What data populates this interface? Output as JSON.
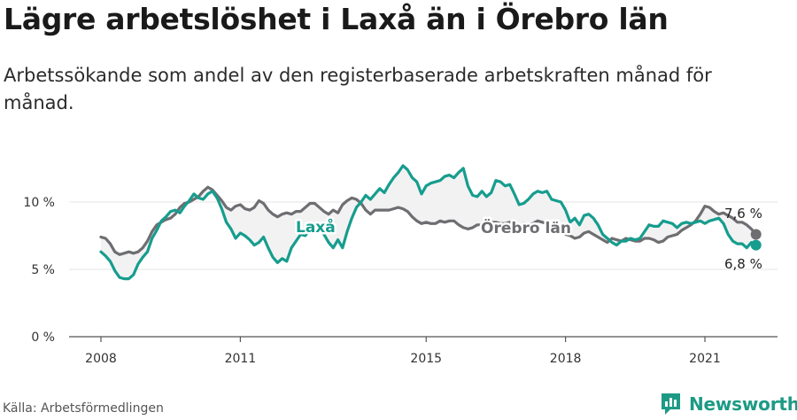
{
  "header": {
    "title": "Lägre arbetslöshet i Laxå än i Örebro län",
    "subtitle": "Arbetssökande som andel av den registerbaserade arbetskraften månad för månad."
  },
  "footer": {
    "source": "Källa: Arbetsförmedlingen",
    "brand": "Newsworthy"
  },
  "colors": {
    "laxa": "#169d8e",
    "orebro": "#6e6e72",
    "fill": "#f2f2f3",
    "axis": "#555555",
    "grid": "#e5e5e5"
  },
  "chart_data": {
    "type": "line",
    "title": "Lägre arbetslöshet i Laxå än i Örebro län",
    "ylim": [
      0,
      13
    ],
    "yticks": [
      0,
      5,
      10
    ],
    "ytick_labels": [
      "0 %",
      "5 %",
      "10 %"
    ],
    "xlim": [
      2007.5,
      2022.5
    ],
    "xticks": [
      2008,
      2011,
      2015,
      2018,
      2021
    ],
    "xtick_labels": [
      "2008",
      "2011",
      "2015",
      "2018",
      "2021"
    ],
    "grid": true,
    "annotations": {
      "orebro_end": "7,6 %",
      "laxa_end": "6,8 %"
    },
    "series": [
      {
        "name": "Laxå",
        "color": "#169d8e",
        "points": [
          [
            2008.0,
            6.3
          ],
          [
            2008.1,
            6.0
          ],
          [
            2008.2,
            5.6
          ],
          [
            2008.3,
            4.9
          ],
          [
            2008.4,
            4.4
          ],
          [
            2008.5,
            4.3
          ],
          [
            2008.6,
            4.3
          ],
          [
            2008.7,
            4.6
          ],
          [
            2008.8,
            5.4
          ],
          [
            2008.9,
            5.9
          ],
          [
            2009.0,
            6.3
          ],
          [
            2009.1,
            7.3
          ],
          [
            2009.2,
            7.9
          ],
          [
            2009.3,
            8.6
          ],
          [
            2009.4,
            8.9
          ],
          [
            2009.5,
            9.3
          ],
          [
            2009.6,
            9.4
          ],
          [
            2009.7,
            9.2
          ],
          [
            2009.8,
            9.7
          ],
          [
            2009.9,
            10.1
          ],
          [
            2010.0,
            10.6
          ],
          [
            2010.1,
            10.3
          ],
          [
            2010.2,
            10.2
          ],
          [
            2010.3,
            10.6
          ],
          [
            2010.4,
            10.8
          ],
          [
            2010.5,
            10.3
          ],
          [
            2010.6,
            9.5
          ],
          [
            2010.7,
            8.5
          ],
          [
            2010.8,
            8.0
          ],
          [
            2010.9,
            7.3
          ],
          [
            2011.0,
            7.7
          ],
          [
            2011.1,
            7.5
          ],
          [
            2011.2,
            7.2
          ],
          [
            2011.3,
            6.8
          ],
          [
            2011.4,
            7.0
          ],
          [
            2011.5,
            7.4
          ],
          [
            2011.6,
            6.6
          ],
          [
            2011.7,
            5.9
          ],
          [
            2011.8,
            5.5
          ],
          [
            2011.9,
            5.8
          ],
          [
            2012.0,
            5.6
          ],
          [
            2012.1,
            6.6
          ],
          [
            2012.2,
            7.1
          ],
          [
            2012.3,
            7.6
          ],
          [
            2012.4,
            7.5
          ],
          [
            2012.5,
            8.0
          ],
          [
            2012.6,
            8.4
          ],
          [
            2012.7,
            8.3
          ],
          [
            2012.8,
            7.6
          ],
          [
            2012.9,
            7.0
          ],
          [
            2013.0,
            6.6
          ],
          [
            2013.1,
            7.2
          ],
          [
            2013.2,
            6.6
          ],
          [
            2013.3,
            7.8
          ],
          [
            2013.4,
            8.8
          ],
          [
            2013.5,
            9.6
          ],
          [
            2013.6,
            10.0
          ],
          [
            2013.7,
            10.5
          ],
          [
            2013.8,
            10.2
          ],
          [
            2013.9,
            10.6
          ],
          [
            2014.0,
            11.0
          ],
          [
            2014.1,
            10.7
          ],
          [
            2014.2,
            11.3
          ],
          [
            2014.3,
            11.8
          ],
          [
            2014.4,
            12.2
          ],
          [
            2014.5,
            12.7
          ],
          [
            2014.6,
            12.4
          ],
          [
            2014.7,
            11.8
          ],
          [
            2014.8,
            11.5
          ],
          [
            2014.9,
            10.6
          ],
          [
            2015.0,
            11.2
          ],
          [
            2015.1,
            11.4
          ],
          [
            2015.2,
            11.5
          ],
          [
            2015.3,
            11.6
          ],
          [
            2015.4,
            11.9
          ],
          [
            2015.5,
            12.0
          ],
          [
            2015.6,
            11.8
          ],
          [
            2015.7,
            12.2
          ],
          [
            2015.8,
            12.5
          ],
          [
            2015.9,
            11.2
          ],
          [
            2016.0,
            10.5
          ],
          [
            2016.1,
            10.4
          ],
          [
            2016.2,
            10.8
          ],
          [
            2016.3,
            10.4
          ],
          [
            2016.4,
            10.7
          ],
          [
            2016.5,
            11.6
          ],
          [
            2016.6,
            11.5
          ],
          [
            2016.7,
            11.2
          ],
          [
            2016.8,
            11.3
          ],
          [
            2016.9,
            10.6
          ],
          [
            2017.0,
            9.8
          ],
          [
            2017.1,
            9.9
          ],
          [
            2017.2,
            10.2
          ],
          [
            2017.3,
            10.6
          ],
          [
            2017.4,
            10.8
          ],
          [
            2017.5,
            10.7
          ],
          [
            2017.6,
            10.8
          ],
          [
            2017.7,
            10.2
          ],
          [
            2017.8,
            10.1
          ],
          [
            2017.9,
            10.0
          ],
          [
            2018.0,
            9.4
          ],
          [
            2018.1,
            8.5
          ],
          [
            2018.2,
            8.8
          ],
          [
            2018.3,
            8.3
          ],
          [
            2018.4,
            9.0
          ],
          [
            2018.5,
            9.1
          ],
          [
            2018.6,
            8.8
          ],
          [
            2018.7,
            8.3
          ],
          [
            2018.8,
            7.6
          ],
          [
            2018.9,
            7.3
          ],
          [
            2019.0,
            7.0
          ],
          [
            2019.1,
            6.8
          ],
          [
            2019.2,
            7.1
          ],
          [
            2019.3,
            7.1
          ],
          [
            2019.4,
            7.3
          ],
          [
            2019.5,
            7.2
          ],
          [
            2019.6,
            7.3
          ],
          [
            2019.7,
            7.8
          ],
          [
            2019.8,
            8.3
          ],
          [
            2019.9,
            8.2
          ],
          [
            2020.0,
            8.2
          ],
          [
            2020.1,
            8.6
          ],
          [
            2020.2,
            8.5
          ],
          [
            2020.3,
            8.4
          ],
          [
            2020.4,
            8.1
          ],
          [
            2020.5,
            8.4
          ],
          [
            2020.6,
            8.5
          ],
          [
            2020.7,
            8.4
          ],
          [
            2020.8,
            8.5
          ],
          [
            2020.9,
            8.6
          ],
          [
            2021.0,
            8.4
          ],
          [
            2021.1,
            8.6
          ],
          [
            2021.2,
            8.7
          ],
          [
            2021.3,
            8.8
          ],
          [
            2021.4,
            8.4
          ],
          [
            2021.5,
            7.6
          ],
          [
            2021.6,
            7.1
          ],
          [
            2021.7,
            6.9
          ],
          [
            2021.8,
            6.9
          ],
          [
            2021.9,
            6.6
          ],
          [
            2022.0,
            7.0
          ],
          [
            2022.1,
            6.8
          ]
        ]
      },
      {
        "name": "Örebro län",
        "color": "#6e6e72",
        "points": [
          [
            2008.0,
            7.4
          ],
          [
            2008.1,
            7.3
          ],
          [
            2008.2,
            6.9
          ],
          [
            2008.3,
            6.3
          ],
          [
            2008.4,
            6.1
          ],
          [
            2008.5,
            6.2
          ],
          [
            2008.6,
            6.3
          ],
          [
            2008.7,
            6.2
          ],
          [
            2008.8,
            6.3
          ],
          [
            2008.9,
            6.6
          ],
          [
            2009.0,
            7.1
          ],
          [
            2009.1,
            7.8
          ],
          [
            2009.2,
            8.3
          ],
          [
            2009.3,
            8.5
          ],
          [
            2009.4,
            8.7
          ],
          [
            2009.5,
            8.8
          ],
          [
            2009.6,
            9.1
          ],
          [
            2009.7,
            9.6
          ],
          [
            2009.8,
            9.9
          ],
          [
            2009.9,
            10.0
          ],
          [
            2010.0,
            10.2
          ],
          [
            2010.1,
            10.4
          ],
          [
            2010.2,
            10.8
          ],
          [
            2010.3,
            11.1
          ],
          [
            2010.4,
            10.9
          ],
          [
            2010.5,
            10.5
          ],
          [
            2010.6,
            10.1
          ],
          [
            2010.7,
            9.6
          ],
          [
            2010.8,
            9.4
          ],
          [
            2010.9,
            9.7
          ],
          [
            2011.0,
            9.8
          ],
          [
            2011.1,
            9.5
          ],
          [
            2011.2,
            9.4
          ],
          [
            2011.3,
            9.6
          ],
          [
            2011.4,
            10.1
          ],
          [
            2011.5,
            9.9
          ],
          [
            2011.6,
            9.4
          ],
          [
            2011.7,
            9.1
          ],
          [
            2011.8,
            8.9
          ],
          [
            2011.9,
            9.1
          ],
          [
            2012.0,
            9.2
          ],
          [
            2012.1,
            9.1
          ],
          [
            2012.2,
            9.3
          ],
          [
            2012.3,
            9.3
          ],
          [
            2012.4,
            9.6
          ],
          [
            2012.5,
            9.9
          ],
          [
            2012.6,
            9.9
          ],
          [
            2012.7,
            9.6
          ],
          [
            2012.8,
            9.3
          ],
          [
            2012.9,
            9.1
          ],
          [
            2013.0,
            9.4
          ],
          [
            2013.1,
            9.2
          ],
          [
            2013.2,
            9.8
          ],
          [
            2013.3,
            10.1
          ],
          [
            2013.4,
            10.3
          ],
          [
            2013.5,
            10.2
          ],
          [
            2013.6,
            9.9
          ],
          [
            2013.7,
            9.4
          ],
          [
            2013.8,
            9.1
          ],
          [
            2013.9,
            9.4
          ],
          [
            2014.0,
            9.4
          ],
          [
            2014.1,
            9.4
          ],
          [
            2014.2,
            9.4
          ],
          [
            2014.3,
            9.5
          ],
          [
            2014.4,
            9.6
          ],
          [
            2014.5,
            9.5
          ],
          [
            2014.6,
            9.3
          ],
          [
            2014.7,
            8.9
          ],
          [
            2014.8,
            8.6
          ],
          [
            2014.9,
            8.4
          ],
          [
            2015.0,
            8.5
          ],
          [
            2015.1,
            8.4
          ],
          [
            2015.2,
            8.4
          ],
          [
            2015.3,
            8.6
          ],
          [
            2015.4,
            8.5
          ],
          [
            2015.5,
            8.6
          ],
          [
            2015.6,
            8.6
          ],
          [
            2015.7,
            8.3
          ],
          [
            2015.8,
            8.1
          ],
          [
            2015.9,
            8.0
          ],
          [
            2016.0,
            8.1
          ],
          [
            2016.1,
            8.3
          ],
          [
            2016.2,
            8.3
          ],
          [
            2016.3,
            8.3
          ],
          [
            2016.4,
            8.5
          ],
          [
            2016.5,
            8.5
          ],
          [
            2016.6,
            8.4
          ],
          [
            2016.7,
            8.4
          ],
          [
            2016.8,
            8.5
          ],
          [
            2016.9,
            8.3
          ],
          [
            2017.0,
            8.2
          ],
          [
            2017.1,
            8.4
          ],
          [
            2017.2,
            8.3
          ],
          [
            2017.3,
            8.4
          ],
          [
            2017.4,
            8.6
          ],
          [
            2017.5,
            8.5
          ],
          [
            2017.6,
            8.4
          ],
          [
            2017.7,
            8.1
          ],
          [
            2017.8,
            8.2
          ],
          [
            2017.9,
            7.9
          ],
          [
            2018.0,
            7.6
          ],
          [
            2018.1,
            7.5
          ],
          [
            2018.2,
            7.3
          ],
          [
            2018.3,
            7.4
          ],
          [
            2018.4,
            7.7
          ],
          [
            2018.5,
            7.8
          ],
          [
            2018.6,
            7.6
          ],
          [
            2018.7,
            7.4
          ],
          [
            2018.8,
            7.2
          ],
          [
            2018.9,
            7.0
          ],
          [
            2019.0,
            7.3
          ],
          [
            2019.1,
            7.2
          ],
          [
            2019.2,
            7.1
          ],
          [
            2019.3,
            7.3
          ],
          [
            2019.4,
            7.2
          ],
          [
            2019.5,
            7.1
          ],
          [
            2019.6,
            7.1
          ],
          [
            2019.7,
            7.3
          ],
          [
            2019.8,
            7.3
          ],
          [
            2019.9,
            7.2
          ],
          [
            2020.0,
            7.0
          ],
          [
            2020.1,
            7.1
          ],
          [
            2020.2,
            7.4
          ],
          [
            2020.3,
            7.5
          ],
          [
            2020.4,
            7.6
          ],
          [
            2020.5,
            7.9
          ],
          [
            2020.6,
            8.1
          ],
          [
            2020.7,
            8.3
          ],
          [
            2020.8,
            8.6
          ],
          [
            2020.9,
            9.1
          ],
          [
            2021.0,
            9.7
          ],
          [
            2021.1,
            9.6
          ],
          [
            2021.2,
            9.3
          ],
          [
            2021.3,
            9.1
          ],
          [
            2021.4,
            9.2
          ],
          [
            2021.5,
            9.0
          ],
          [
            2021.6,
            8.8
          ],
          [
            2021.7,
            8.5
          ],
          [
            2021.8,
            8.5
          ],
          [
            2021.9,
            8.3
          ],
          [
            2022.0,
            8.0
          ],
          [
            2022.1,
            7.6
          ]
        ]
      }
    ]
  }
}
